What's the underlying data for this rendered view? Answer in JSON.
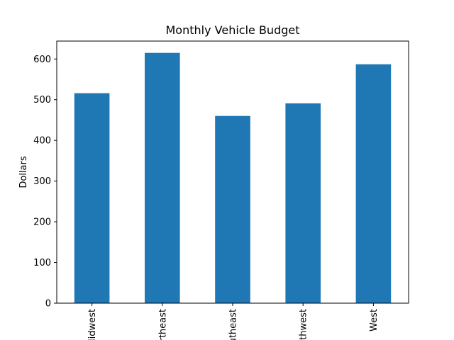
{
  "chart_data": {
    "type": "bar",
    "title": "Monthly Vehicle Budget",
    "xlabel": "",
    "ylabel": "Dollars",
    "categories": [
      "Midwest",
      "Northeast",
      "Southeast",
      "Southwest",
      "West"
    ],
    "values": [
      516,
      615,
      460,
      491,
      587
    ],
    "ylim": [
      0,
      644
    ],
    "yticks": [
      0,
      100,
      200,
      300,
      400,
      500,
      600
    ],
    "grid": false,
    "legend": "none",
    "bar_color": "#1f77b4"
  }
}
